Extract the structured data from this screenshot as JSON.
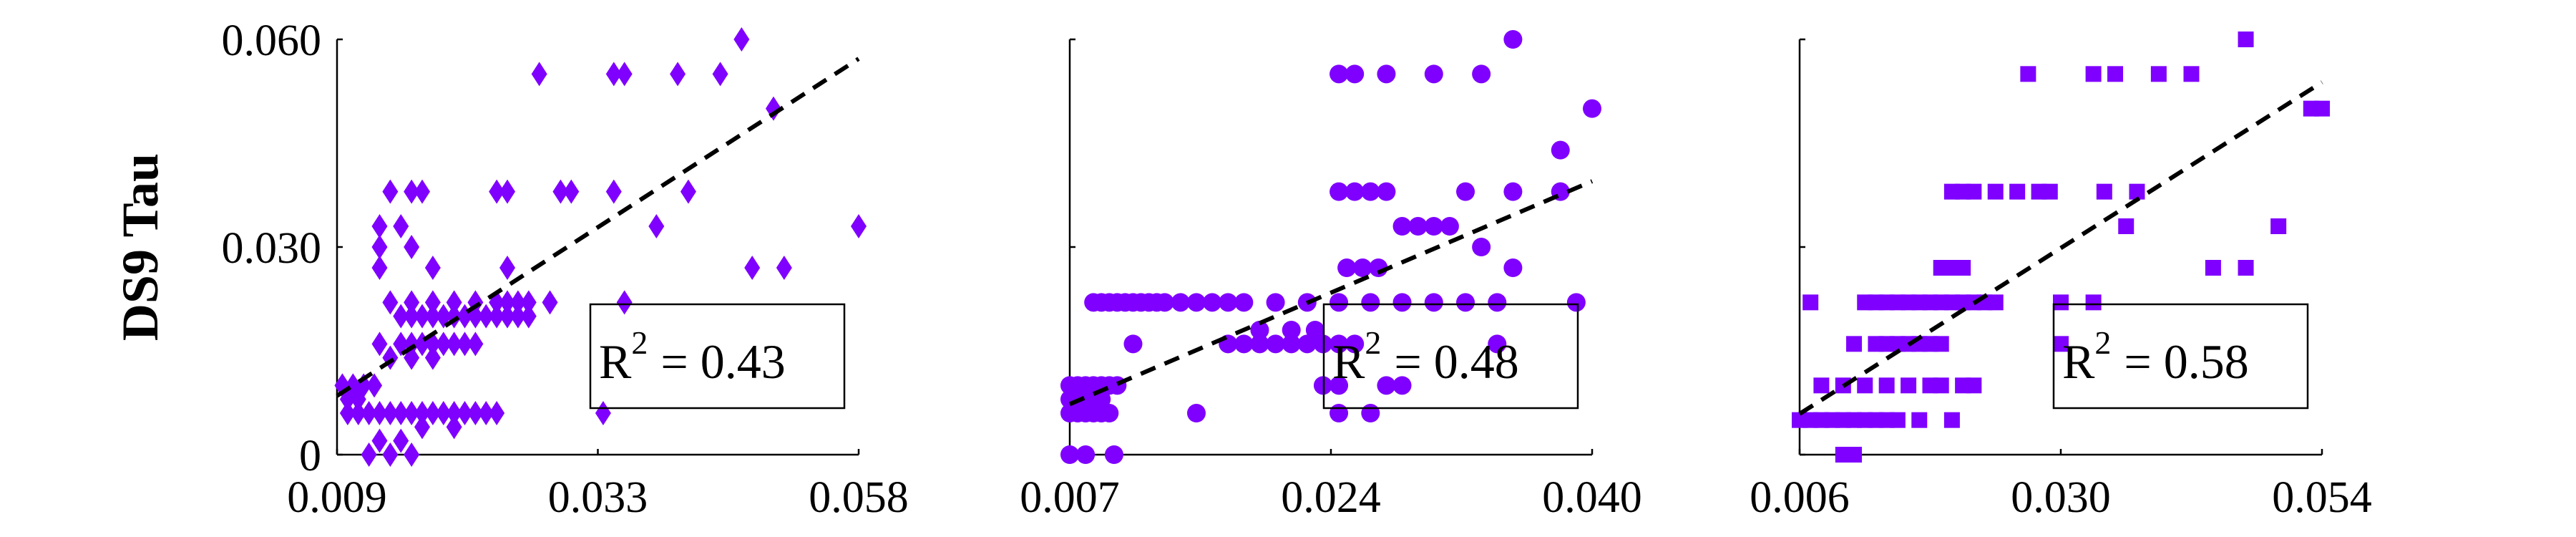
{
  "chart_data": [
    {
      "type": "scatter",
      "xlabel": "",
      "ylabel": "DS9 Tau",
      "xlim": [
        0.009,
        0.058
      ],
      "ylim": [
        0,
        0.06
      ],
      "xticks": [
        "0.009",
        "0.033",
        "0.058"
      ],
      "yticks": [
        "0",
        "0.030",
        "0.060"
      ],
      "marker": "diamond",
      "color": "#7f00ff",
      "trendline": {
        "x": [
          0.009,
          0.058
        ],
        "y": [
          0.0085,
          0.0572
        ],
        "style": "dashed",
        "color": "#000000"
      },
      "annotation": {
        "label": "R",
        "sup": "2",
        "value": "= 0.43"
      },
      "points": [
        [
          0.0095,
          0.01
        ],
        [
          0.0105,
          0.01
        ],
        [
          0.0115,
          0.01
        ],
        [
          0.0125,
          0.01
        ],
        [
          0.01,
          0.008
        ],
        [
          0.011,
          0.008
        ],
        [
          0.01,
          0.006
        ],
        [
          0.011,
          0.006
        ],
        [
          0.012,
          0.006
        ],
        [
          0.013,
          0.006
        ],
        [
          0.014,
          0.006
        ],
        [
          0.015,
          0.006
        ],
        [
          0.016,
          0.006
        ],
        [
          0.017,
          0.006
        ],
        [
          0.018,
          0.006
        ],
        [
          0.019,
          0.006
        ],
        [
          0.02,
          0.006
        ],
        [
          0.021,
          0.006
        ],
        [
          0.022,
          0.006
        ],
        [
          0.023,
          0.006
        ],
        [
          0.024,
          0.006
        ],
        [
          0.013,
          0.002
        ],
        [
          0.015,
          0.002
        ],
        [
          0.016,
          0.0
        ],
        [
          0.012,
          0.0
        ],
        [
          0.014,
          0.0
        ],
        [
          0.017,
          0.004
        ],
        [
          0.02,
          0.004
        ],
        [
          0.013,
          0.016
        ],
        [
          0.015,
          0.016
        ],
        [
          0.016,
          0.016
        ],
        [
          0.017,
          0.016
        ],
        [
          0.018,
          0.016
        ],
        [
          0.019,
          0.016
        ],
        [
          0.02,
          0.016
        ],
        [
          0.021,
          0.016
        ],
        [
          0.022,
          0.016
        ],
        [
          0.014,
          0.014
        ],
        [
          0.016,
          0.014
        ],
        [
          0.018,
          0.014
        ],
        [
          0.015,
          0.02
        ],
        [
          0.016,
          0.02
        ],
        [
          0.017,
          0.02
        ],
        [
          0.018,
          0.02
        ],
        [
          0.019,
          0.02
        ],
        [
          0.02,
          0.02
        ],
        [
          0.021,
          0.02
        ],
        [
          0.022,
          0.02
        ],
        [
          0.023,
          0.02
        ],
        [
          0.024,
          0.02
        ],
        [
          0.025,
          0.02
        ],
        [
          0.026,
          0.02
        ],
        [
          0.027,
          0.02
        ],
        [
          0.014,
          0.022
        ],
        [
          0.016,
          0.022
        ],
        [
          0.018,
          0.022
        ],
        [
          0.02,
          0.022
        ],
        [
          0.022,
          0.022
        ],
        [
          0.024,
          0.022
        ],
        [
          0.025,
          0.022
        ],
        [
          0.026,
          0.022
        ],
        [
          0.027,
          0.022
        ],
        [
          0.029,
          0.022
        ],
        [
          0.013,
          0.027
        ],
        [
          0.018,
          0.027
        ],
        [
          0.025,
          0.027
        ],
        [
          0.013,
          0.03
        ],
        [
          0.016,
          0.03
        ],
        [
          0.013,
          0.033
        ],
        [
          0.015,
          0.033
        ],
        [
          0.014,
          0.038
        ],
        [
          0.016,
          0.038
        ],
        [
          0.017,
          0.038
        ],
        [
          0.024,
          0.038
        ],
        [
          0.025,
          0.038
        ],
        [
          0.03,
          0.038
        ],
        [
          0.031,
          0.038
        ],
        [
          0.035,
          0.038
        ],
        [
          0.028,
          0.055
        ],
        [
          0.035,
          0.055
        ],
        [
          0.036,
          0.055
        ],
        [
          0.041,
          0.055
        ],
        [
          0.045,
          0.055
        ],
        [
          0.047,
          0.06
        ],
        [
          0.05,
          0.05
        ],
        [
          0.039,
          0.033
        ],
        [
          0.042,
          0.038
        ],
        [
          0.036,
          0.022
        ],
        [
          0.034,
          0.006
        ],
        [
          0.048,
          0.027
        ],
        [
          0.051,
          0.027
        ],
        [
          0.058,
          0.033
        ]
      ]
    },
    {
      "type": "scatter",
      "xlabel": "",
      "ylabel": "",
      "xlim": [
        0.007,
        0.04
      ],
      "ylim": [
        0,
        0.06
      ],
      "xticks": [
        "0.007",
        "0.024",
        "0.040"
      ],
      "yticks": [],
      "marker": "circle",
      "color": "#7f00ff",
      "trendline": {
        "x": [
          0.007,
          0.04
        ],
        "y": [
          0.0073,
          0.0395
        ],
        "style": "dashed",
        "color": "#000000"
      },
      "annotation": {
        "label": "R",
        "sup": "2",
        "value": "= 0.48"
      },
      "points": [
        [
          0.007,
          0.0
        ],
        [
          0.008,
          0.0
        ],
        [
          0.0098,
          0.0
        ],
        [
          0.007,
          0.006
        ],
        [
          0.0075,
          0.006
        ],
        [
          0.008,
          0.006
        ],
        [
          0.0085,
          0.006
        ],
        [
          0.009,
          0.006
        ],
        [
          0.0095,
          0.006
        ],
        [
          0.007,
          0.008
        ],
        [
          0.008,
          0.008
        ],
        [
          0.009,
          0.008
        ],
        [
          0.007,
          0.01
        ],
        [
          0.0075,
          0.01
        ],
        [
          0.008,
          0.01
        ],
        [
          0.0085,
          0.01
        ],
        [
          0.009,
          0.01
        ],
        [
          0.0095,
          0.01
        ],
        [
          0.01,
          0.01
        ],
        [
          0.0085,
          0.022
        ],
        [
          0.009,
          0.022
        ],
        [
          0.0095,
          0.022
        ],
        [
          0.01,
          0.022
        ],
        [
          0.0105,
          0.022
        ],
        [
          0.011,
          0.022
        ],
        [
          0.0115,
          0.022
        ],
        [
          0.012,
          0.022
        ],
        [
          0.0125,
          0.022
        ],
        [
          0.013,
          0.022
        ],
        [
          0.014,
          0.022
        ],
        [
          0.015,
          0.022
        ],
        [
          0.016,
          0.022
        ],
        [
          0.017,
          0.022
        ],
        [
          0.018,
          0.022
        ],
        [
          0.02,
          0.022
        ],
        [
          0.022,
          0.022
        ],
        [
          0.024,
          0.022
        ],
        [
          0.026,
          0.022
        ],
        [
          0.028,
          0.022
        ],
        [
          0.03,
          0.022
        ],
        [
          0.032,
          0.022
        ],
        [
          0.034,
          0.022
        ],
        [
          0.039,
          0.022
        ],
        [
          0.011,
          0.016
        ],
        [
          0.015,
          0.006
        ],
        [
          0.017,
          0.016
        ],
        [
          0.018,
          0.016
        ],
        [
          0.019,
          0.016
        ],
        [
          0.02,
          0.016
        ],
        [
          0.021,
          0.016
        ],
        [
          0.022,
          0.016
        ],
        [
          0.023,
          0.016
        ],
        [
          0.024,
          0.016
        ],
        [
          0.025,
          0.016
        ],
        [
          0.019,
          0.018
        ],
        [
          0.021,
          0.018
        ],
        [
          0.0225,
          0.018
        ],
        [
          0.024,
          0.006
        ],
        [
          0.026,
          0.006
        ],
        [
          0.027,
          0.01
        ],
        [
          0.028,
          0.01
        ],
        [
          0.023,
          0.01
        ],
        [
          0.024,
          0.01
        ],
        [
          0.0245,
          0.027
        ],
        [
          0.0255,
          0.027
        ],
        [
          0.0265,
          0.027
        ],
        [
          0.024,
          0.038
        ],
        [
          0.025,
          0.038
        ],
        [
          0.026,
          0.038
        ],
        [
          0.027,
          0.038
        ],
        [
          0.028,
          0.033
        ],
        [
          0.029,
          0.033
        ],
        [
          0.03,
          0.033
        ],
        [
          0.032,
          0.038
        ],
        [
          0.035,
          0.038
        ],
        [
          0.038,
          0.038
        ],
        [
          0.024,
          0.055
        ],
        [
          0.025,
          0.055
        ],
        [
          0.027,
          0.055
        ],
        [
          0.03,
          0.055
        ],
        [
          0.033,
          0.055
        ],
        [
          0.035,
          0.06
        ],
        [
          0.04,
          0.05
        ],
        [
          0.034,
          0.016
        ],
        [
          0.035,
          0.027
        ],
        [
          0.038,
          0.044
        ],
        [
          0.031,
          0.033
        ],
        [
          0.033,
          0.03
        ]
      ]
    },
    {
      "type": "scatter",
      "xlabel": "",
      "ylabel": "",
      "xlim": [
        0.006,
        0.054
      ],
      "ylim": [
        0,
        0.06
      ],
      "xticks": [
        "0.006",
        "0.030",
        "0.054"
      ],
      "yticks": [],
      "marker": "square",
      "color": "#7f00ff",
      "trendline": {
        "x": [
          0.006,
          0.054
        ],
        "y": [
          0.0059,
          0.0538
        ],
        "style": "dashed",
        "color": "#000000"
      },
      "annotation": {
        "label": "R",
        "sup": "2",
        "value": "= 0.58"
      },
      "points": [
        [
          0.01,
          0.0
        ],
        [
          0.011,
          0.0
        ],
        [
          0.006,
          0.005
        ],
        [
          0.007,
          0.005
        ],
        [
          0.008,
          0.005
        ],
        [
          0.009,
          0.005
        ],
        [
          0.01,
          0.005
        ],
        [
          0.011,
          0.005
        ],
        [
          0.012,
          0.005
        ],
        [
          0.013,
          0.005
        ],
        [
          0.014,
          0.005
        ],
        [
          0.015,
          0.005
        ],
        [
          0.017,
          0.005
        ],
        [
          0.02,
          0.005
        ],
        [
          0.007,
          0.022
        ],
        [
          0.012,
          0.022
        ],
        [
          0.013,
          0.022
        ],
        [
          0.014,
          0.022
        ],
        [
          0.015,
          0.022
        ],
        [
          0.016,
          0.022
        ],
        [
          0.017,
          0.022
        ],
        [
          0.018,
          0.022
        ],
        [
          0.019,
          0.022
        ],
        [
          0.02,
          0.022
        ],
        [
          0.021,
          0.022
        ],
        [
          0.022,
          0.022
        ],
        [
          0.023,
          0.022
        ],
        [
          0.024,
          0.022
        ],
        [
          0.03,
          0.022
        ],
        [
          0.033,
          0.022
        ],
        [
          0.011,
          0.016
        ],
        [
          0.013,
          0.016
        ],
        [
          0.014,
          0.016
        ],
        [
          0.015,
          0.016
        ],
        [
          0.016,
          0.016
        ],
        [
          0.017,
          0.016
        ],
        [
          0.018,
          0.016
        ],
        [
          0.019,
          0.016
        ],
        [
          0.03,
          0.016
        ],
        [
          0.008,
          0.01
        ],
        [
          0.01,
          0.01
        ],
        [
          0.012,
          0.01
        ],
        [
          0.014,
          0.01
        ],
        [
          0.016,
          0.01
        ],
        [
          0.018,
          0.01
        ],
        [
          0.019,
          0.01
        ],
        [
          0.021,
          0.01
        ],
        [
          0.022,
          0.01
        ],
        [
          0.019,
          0.027
        ],
        [
          0.02,
          0.027
        ],
        [
          0.021,
          0.027
        ],
        [
          0.02,
          0.038
        ],
        [
          0.021,
          0.038
        ],
        [
          0.022,
          0.038
        ],
        [
          0.024,
          0.038
        ],
        [
          0.026,
          0.038
        ],
        [
          0.028,
          0.038
        ],
        [
          0.029,
          0.038
        ],
        [
          0.034,
          0.038
        ],
        [
          0.037,
          0.038
        ],
        [
          0.027,
          0.055
        ],
        [
          0.033,
          0.055
        ],
        [
          0.035,
          0.055
        ],
        [
          0.039,
          0.055
        ],
        [
          0.042,
          0.055
        ],
        [
          0.047,
          0.06
        ],
        [
          0.054,
          0.05
        ],
        [
          0.036,
          0.033
        ],
        [
          0.044,
          0.027
        ],
        [
          0.047,
          0.027
        ],
        [
          0.05,
          0.033
        ],
        [
          0.053,
          0.05
        ]
      ]
    }
  ]
}
